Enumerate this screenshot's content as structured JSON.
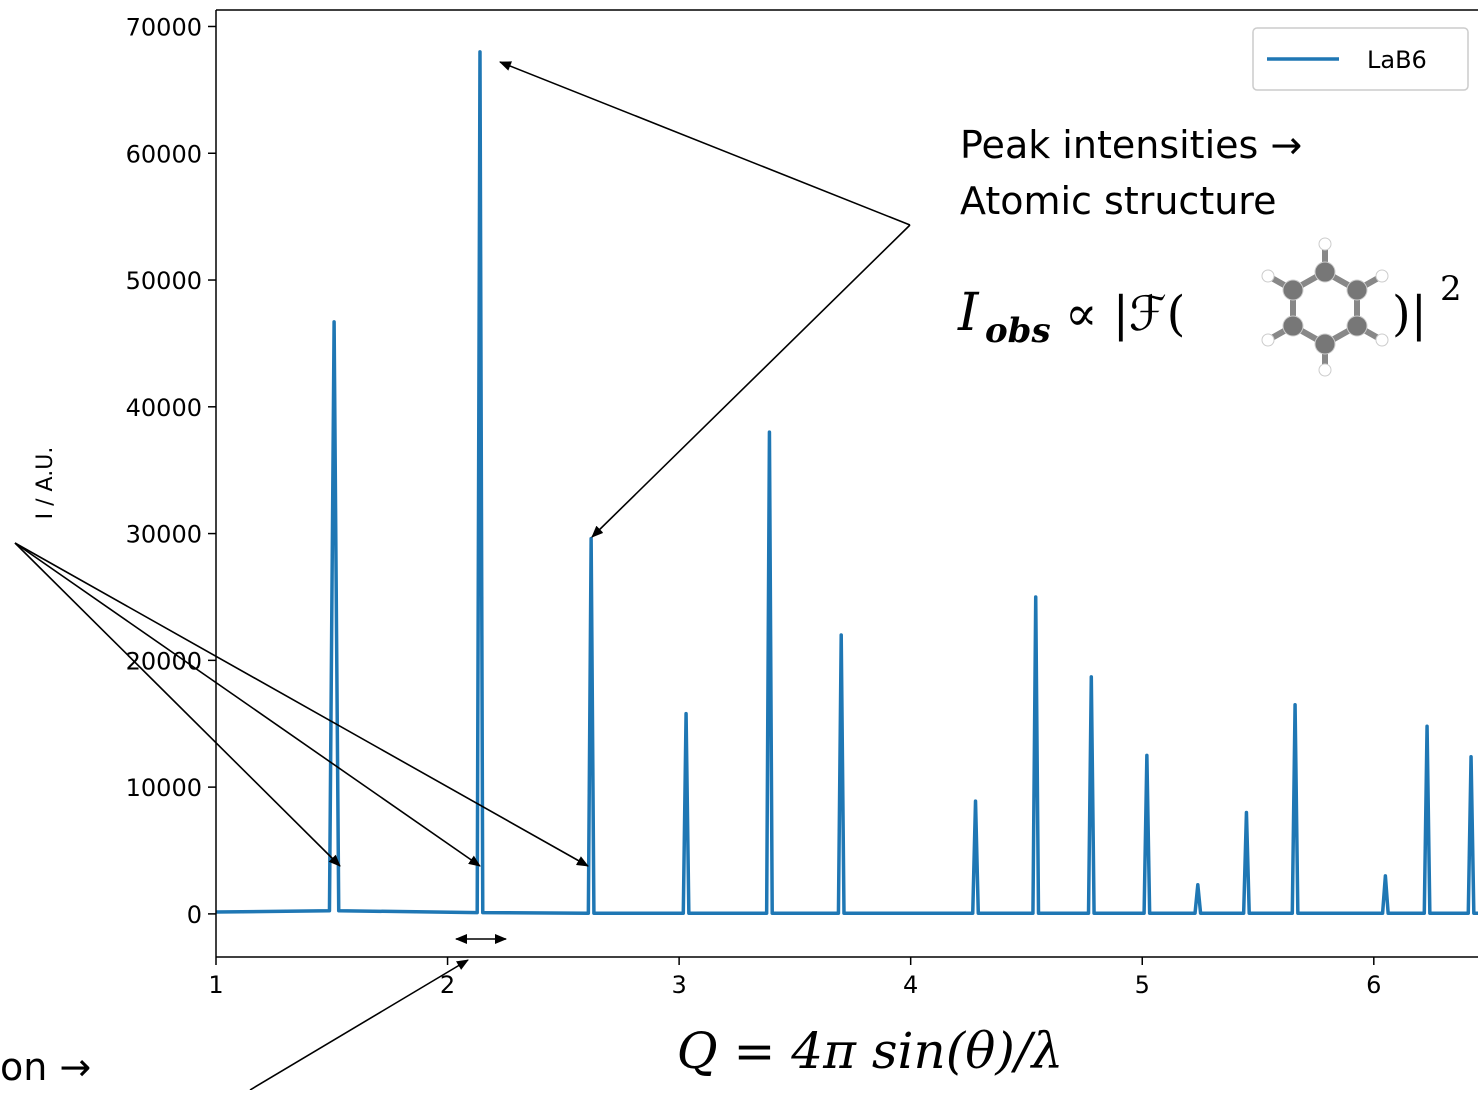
{
  "chart_data": {
    "type": "line",
    "y_label": "I / A.U.",
    "x_label": "Q = 4π sin(θ)/λ",
    "xlim": [
      1,
      6.45
    ],
    "ylim": [
      -3400,
      71300
    ],
    "xticks": [
      1,
      2,
      3,
      4,
      5,
      6
    ],
    "yticks": [
      0,
      10000,
      20000,
      30000,
      40000,
      50000,
      60000,
      70000
    ],
    "legend": "upper right",
    "x": [
      1,
      1.49,
      1.51,
      1.53,
      2.128,
      2.14,
      2.152,
      2.608,
      2.62,
      2.632,
      3.018,
      3.03,
      3.042,
      3.378,
      3.39,
      3.402,
      3.688,
      3.7,
      3.712,
      4.268,
      4.28,
      4.292,
      4.528,
      4.54,
      4.552,
      4.768,
      4.78,
      4.792,
      5.008,
      5.02,
      5.032,
      5.228,
      5.24,
      5.252,
      5.438,
      5.45,
      5.462,
      5.648,
      5.66,
      5.672,
      6.038,
      6.05,
      6.062,
      6.218,
      6.23,
      6.242,
      6.408,
      6.42,
      6.432,
      6.45
    ],
    "series": [
      {
        "name": "LaB6",
        "color": "#1f77b4",
        "values": [
          150,
          250,
          46700,
          250,
          100,
          68000,
          100,
          50,
          29600,
          50,
          50,
          15800,
          50,
          50,
          38000,
          50,
          50,
          22000,
          50,
          50,
          8900,
          50,
          50,
          25000,
          50,
          50,
          18700,
          50,
          50,
          12500,
          50,
          50,
          2300,
          50,
          50,
          8000,
          50,
          50,
          16500,
          50,
          50,
          3000,
          50,
          50,
          14800,
          50,
          50,
          12400,
          50,
          50
        ]
      }
    ],
    "annotations": [
      "Peak intensities →",
      "Atomic structure",
      "on →"
    ],
    "formula": {
      "symbol": "I",
      "subscript": "obs",
      "relation": "∝ |ℱ(",
      "closing": ")|",
      "power": "2"
    }
  }
}
